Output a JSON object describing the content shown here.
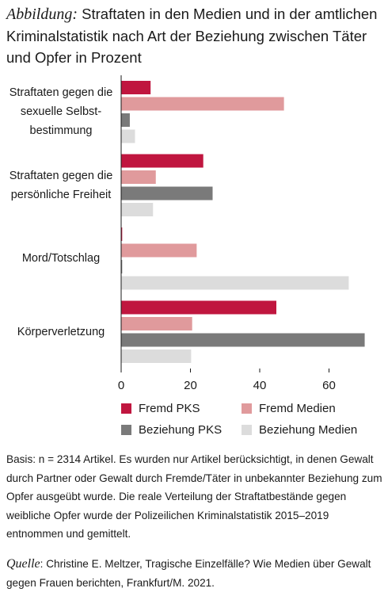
{
  "chart_data": {
    "type": "hbar",
    "title_prefix": "Abbildung:",
    "title": "Straftaten in den Medien und in der amtlichen Kriminalstatistik nach Art der Beziehung zwischen Täter und Opfer in Prozent",
    "categories": [
      "Straftaten gegen die sexuelle Selbst­bestimmung",
      "Straftaten gegen die persönliche Freiheit",
      "Mord/Totschlag",
      "Körperverletzung"
    ],
    "series": [
      {
        "name": "Fremd PKS",
        "color": "#c0163f",
        "values": [
          8.5,
          23.7,
          0.3,
          44.8
        ]
      },
      {
        "name": "Fremd Medien",
        "color": "#e09a9c",
        "values": [
          47,
          10,
          21.8,
          20.5
        ]
      },
      {
        "name": "Beziehung PKS",
        "color": "#7a7a7a",
        "values": [
          2.5,
          26.4,
          0.3,
          70.3
        ]
      },
      {
        "name": "Beziehung Medien",
        "color": "#dcdcdc",
        "values": [
          4,
          9.2,
          65.7,
          20.2
        ]
      }
    ],
    "xlim": [
      0,
      72
    ],
    "xticks": [
      0,
      20,
      40,
      60
    ],
    "grid": false,
    "note": "Basis: n = 2314 Artikel. Es wurden nur Artikel berücksichtigt, in denen Gewalt durch Partner oder Gewalt durch Fremde/Täter in unbekannter Beziehung zum Opfer ausgeübt wurde. Die reale Verteilung der Straftatbestände gegen weibliche Opfer wurde der Polizeilichen Kriminalstatistik 2015–2019 entnommen und gemittelt.",
    "source_label": "Quelle",
    "source": ": Christine E. Meltzer, Tragische Einzelfälle? Wie Medien über Gewalt gegen Frauen berichten, Frankfurt/M. 2021."
  }
}
